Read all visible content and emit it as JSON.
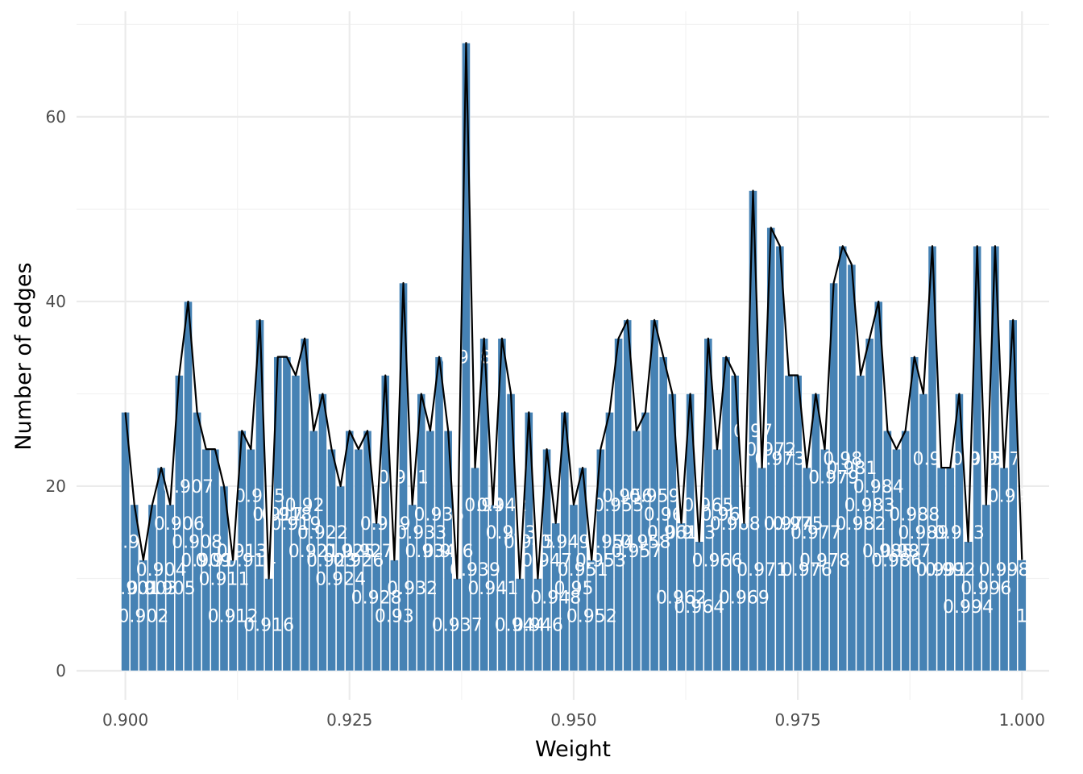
{
  "chart_data": {
    "type": "bar",
    "title": "",
    "xlabel": "Weight",
    "ylabel": "Number of edges",
    "xlim": [
      0.8975,
      1.003
    ],
    "ylim": [
      -3,
      70
    ],
    "x_ticks": [
      "0.900",
      "0.925",
      "0.950",
      "0.975",
      "1.000"
    ],
    "x_tick_values": [
      0.9,
      0.925,
      0.95,
      0.975,
      1.0
    ],
    "y_ticks": [
      "0",
      "20",
      "40",
      "60"
    ],
    "y_tick_values": [
      0,
      20,
      40,
      60
    ],
    "grid": true,
    "bar_color": "#4682b4",
    "line_color": "#000000",
    "label_color": "#ffffff",
    "series": [
      {
        "x": [
          0.9,
          0.901,
          0.902,
          0.903,
          0.904,
          0.905,
          0.906,
          0.907,
          0.908,
          0.909,
          0.91,
          0.911,
          0.912,
          0.913,
          0.914,
          0.915,
          0.916,
          0.917,
          0.918,
          0.919,
          0.92,
          0.921,
          0.922,
          0.923,
          0.924,
          0.925,
          0.926,
          0.927,
          0.928,
          0.929,
          0.93,
          0.931,
          0.932,
          0.933,
          0.934,
          0.935,
          0.936,
          0.937,
          0.938,
          0.939,
          0.94,
          0.941,
          0.942,
          0.943,
          0.944,
          0.945,
          0.946,
          0.947,
          0.948,
          0.949,
          0.95,
          0.951,
          0.952,
          0.953,
          0.954,
          0.955,
          0.956,
          0.957,
          0.958,
          0.959,
          0.96,
          0.961,
          0.962,
          0.963,
          0.964,
          0.965,
          0.966,
          0.967,
          0.968,
          0.969,
          0.97,
          0.971,
          0.972,
          0.973,
          0.974,
          0.975,
          0.976,
          0.977,
          0.978,
          0.979,
          0.98,
          0.981,
          0.982,
          0.983,
          0.984,
          0.985,
          0.986,
          0.987,
          0.988,
          0.989,
          0.99,
          0.991,
          0.992,
          0.993,
          0.994,
          0.995,
          0.996,
          0.997,
          0.998,
          0.999,
          1.0
        ],
        "values": [
          28,
          18,
          12,
          18,
          22,
          18,
          32,
          40,
          28,
          24,
          24,
          20,
          12,
          26,
          24,
          38,
          10,
          34,
          34,
          32,
          36,
          26,
          30,
          24,
          20,
          26,
          24,
          26,
          16,
          32,
          12,
          42,
          18,
          30,
          26,
          34,
          26,
          10,
          68,
          22,
          36,
          18,
          36,
          30,
          10,
          28,
          10,
          24,
          16,
          28,
          18,
          22,
          12,
          24,
          28,
          36,
          38,
          26,
          28,
          38,
          34,
          30,
          16,
          30,
          14,
          36,
          24,
          34,
          32,
          16,
          52,
          22,
          48,
          46,
          32,
          32,
          22,
          30,
          24,
          42,
          46,
          44,
          32,
          36,
          40,
          26,
          24,
          26,
          34,
          30,
          46,
          22,
          22,
          30,
          14,
          46,
          18,
          46,
          22,
          38,
          12
        ],
        "labels": [
          "0.9",
          "0.901",
          "0.902",
          "0.903",
          "0.904",
          "0.905",
          "0.906",
          "0.907",
          "0.908",
          "0.909",
          "0.91",
          "0.911",
          "0.912",
          "0.913",
          "0.914",
          "0.915",
          "0.916",
          "0.917",
          "0.918",
          "0.919",
          "0.92",
          "0.921",
          "0.922",
          "0.923",
          "0.924",
          "0.925",
          "0.926",
          "0.927",
          "0.928",
          "0.929",
          "0.93",
          "0.931",
          "0.932",
          "0.933",
          "0.934",
          "0.935",
          "0.936",
          "0.937",
          "0.938",
          "0.939",
          "0.94",
          "0.941",
          "0.942",
          "0.943",
          "0.944",
          "0.945",
          "0.946",
          "0.947",
          "0.948",
          "0.949",
          "0.95",
          "0.951",
          "0.952",
          "0.953",
          "0.954",
          "0.955",
          "0.956",
          "0.957",
          "0.958",
          "0.959",
          "0.96",
          "0.961",
          "0.962",
          "0.963",
          "0.964",
          "0.965",
          "0.966",
          "0.967",
          "0.968",
          "0.969",
          "0.97",
          "0.971",
          "0.972",
          "0.973",
          "0.974",
          "0.975",
          "0.976",
          "0.977",
          "0.978",
          "0.979",
          "0.98",
          "0.981",
          "0.982",
          "0.983",
          "0.984",
          "0.985",
          "0.986",
          "0.987",
          "0.988",
          "0.989",
          "0.99",
          "0.991",
          "0.992",
          "0.993",
          "0.994",
          "0.995",
          "0.996",
          "0.997",
          "0.998",
          "0.999",
          "1"
        ]
      }
    ]
  }
}
